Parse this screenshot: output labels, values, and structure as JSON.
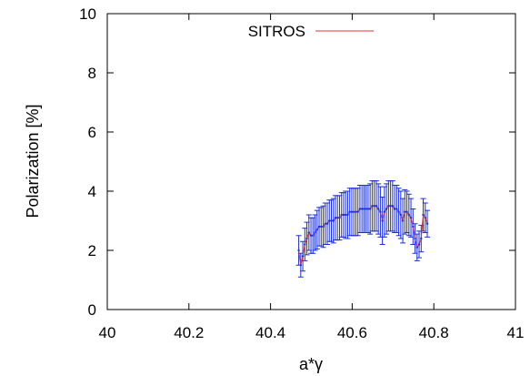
{
  "chart_data": {
    "type": "line",
    "xlabel": "a*γ",
    "ylabel": "Polarization [%]",
    "xlim": [
      40,
      41
    ],
    "ylim": [
      0,
      10
    ],
    "x_ticks": [
      "40",
      "40.2",
      "40.4",
      "40.6",
      "40.8",
      "41"
    ],
    "y_ticks": [
      "0",
      "2",
      "4",
      "6",
      "8",
      "10"
    ],
    "grid": false,
    "legend_position": "top-center",
    "colors": {
      "line": "#e0303a",
      "errorbar": "#1b2fd8",
      "axis": "#000000"
    },
    "series": [
      {
        "name": "SITROS",
        "x": [
          40.469,
          40.474,
          40.479,
          40.484,
          40.489,
          40.494,
          40.499,
          40.504,
          40.509,
          40.514,
          40.519,
          40.524,
          40.529,
          40.534,
          40.539,
          40.544,
          40.549,
          40.554,
          40.559,
          40.564,
          40.569,
          40.574,
          40.579,
          40.584,
          40.589,
          40.594,
          40.599,
          40.604,
          40.609,
          40.614,
          40.619,
          40.624,
          40.629,
          40.634,
          40.639,
          40.644,
          40.649,
          40.654,
          40.659,
          40.664,
          40.669,
          40.674,
          40.679,
          40.684,
          40.689,
          40.694,
          40.699,
          40.704,
          40.709,
          40.714,
          40.719,
          40.724,
          40.729,
          40.734,
          40.739,
          40.744,
          40.749,
          40.754,
          40.759,
          40.764,
          40.769,
          40.774,
          40.779,
          40.784
        ],
        "y": [
          2.0,
          1.5,
          1.8,
          2.2,
          2.4,
          2.6,
          2.5,
          2.5,
          2.6,
          2.7,
          2.8,
          2.8,
          2.8,
          2.9,
          2.9,
          3.0,
          3.0,
          3.0,
          3.1,
          3.1,
          3.1,
          3.2,
          3.2,
          3.2,
          3.2,
          3.3,
          3.3,
          3.3,
          3.3,
          3.3,
          3.4,
          3.4,
          3.4,
          3.4,
          3.4,
          3.4,
          3.5,
          3.5,
          3.5,
          3.4,
          3.3,
          3.0,
          3.3,
          3.4,
          3.5,
          3.5,
          3.5,
          3.4,
          3.4,
          3.3,
          3.2,
          3.0,
          3.3,
          3.3,
          3.2,
          3.1,
          2.8,
          2.4,
          2.1,
          2.2,
          2.4,
          3.2,
          3.1,
          2.9
        ],
        "err": [
          0.5,
          0.4,
          0.5,
          0.55,
          0.55,
          0.6,
          0.6,
          0.6,
          0.6,
          0.65,
          0.65,
          0.65,
          0.7,
          0.7,
          0.7,
          0.7,
          0.7,
          0.75,
          0.75,
          0.75,
          0.75,
          0.75,
          0.75,
          0.8,
          0.8,
          0.8,
          0.8,
          0.8,
          0.8,
          0.8,
          0.8,
          0.8,
          0.8,
          0.8,
          0.8,
          0.85,
          0.85,
          0.85,
          0.85,
          0.85,
          0.85,
          0.8,
          0.85,
          0.85,
          0.85,
          0.85,
          0.85,
          0.8,
          0.8,
          0.8,
          0.8,
          0.75,
          0.75,
          0.7,
          0.7,
          0.65,
          0.6,
          0.5,
          0.45,
          0.45,
          0.45,
          0.55,
          0.5,
          0.45
        ]
      }
    ]
  }
}
